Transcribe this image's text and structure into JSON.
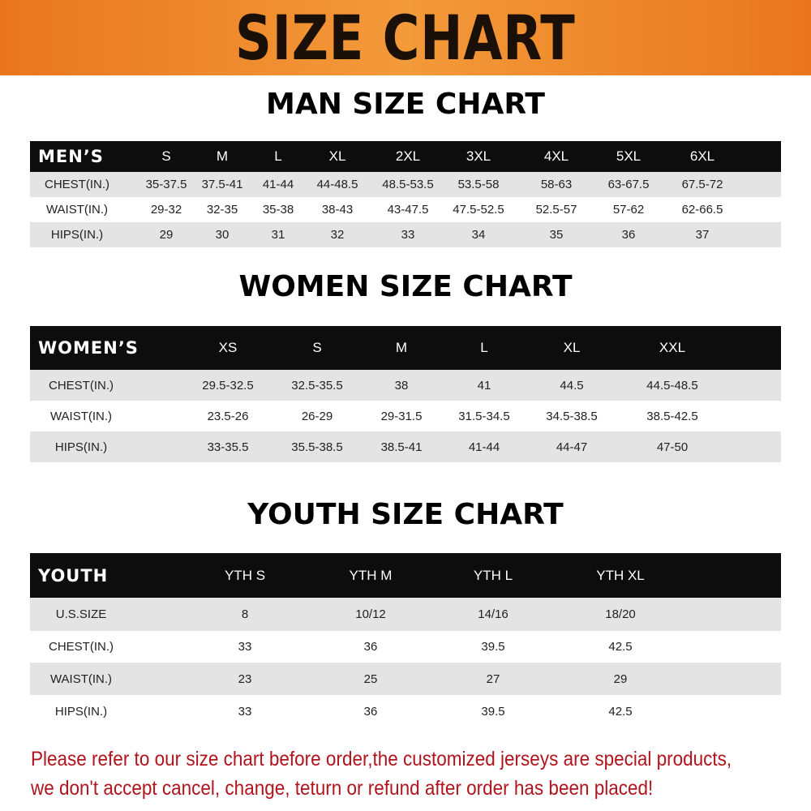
{
  "banner": "SIZE CHART",
  "men": {
    "title": "MAN SIZE CHART",
    "header": [
      "MEN’S",
      "S",
      "M",
      "L",
      "XL",
      "2XL",
      "3XL",
      "4XL",
      "5XL",
      "6XL"
    ],
    "rows": [
      [
        "CHEST(IN.)",
        "35-37.5",
        "37.5-41",
        "41-44",
        "44-48.5",
        "48.5-53.5",
        "53.5-58",
        "58-63",
        "63-67.5",
        "67.5-72"
      ],
      [
        "WAIST(IN.)",
        "29-32",
        "32-35",
        "35-38",
        "38-43",
        "43-47.5",
        "47.5-52.5",
        "52.5-57",
        "57-62",
        "62-66.5"
      ],
      [
        "HIPS(IN.)",
        "29",
        "30",
        "31",
        "32",
        "33",
        "34",
        "35",
        "36",
        "37"
      ]
    ]
  },
  "women": {
    "title": "WOMEN SIZE CHART",
    "header": [
      "WOMEN’S",
      "XS",
      "S",
      "M",
      "L",
      "XL",
      "XXL"
    ],
    "rows": [
      [
        "CHEST(IN.)",
        "29.5-32.5",
        "32.5-35.5",
        "38",
        "41",
        "44.5",
        "44.5-48.5"
      ],
      [
        "WAIST(IN.)",
        "23.5-26",
        "26-29",
        "29-31.5",
        "31.5-34.5",
        "34.5-38.5",
        "38.5-42.5"
      ],
      [
        "HIPS(IN.)",
        "33-35.5",
        "35.5-38.5",
        "38.5-41",
        "41-44",
        "44-47",
        "47-50"
      ]
    ]
  },
  "youth": {
    "title": "YOUTH SIZE CHART",
    "header": [
      "YOUTH",
      "YTH S",
      "YTH M",
      "YTH L",
      "YTH XL"
    ],
    "rows": [
      [
        "U.S.SIZE",
        "8",
        "10/12",
        "14/16",
        "18/20"
      ],
      [
        "CHEST(IN.)",
        "33",
        "36",
        "39.5",
        "42.5"
      ],
      [
        "WAIST(IN.)",
        "23",
        "25",
        "27",
        "29"
      ],
      [
        "HIPS(IN.)",
        "33",
        "36",
        "39.5",
        "42.5"
      ]
    ]
  },
  "notice": [
    "Please refer to our size chart before order,the customized jerseys are special products,",
    "we don't accept cancel, change, teturn or refund after order has been placed!"
  ],
  "colors": {
    "banner": "#e9761c",
    "header": "#0d0d0d",
    "stripe": "#e4e4e4",
    "notice": "#b0141c"
  }
}
